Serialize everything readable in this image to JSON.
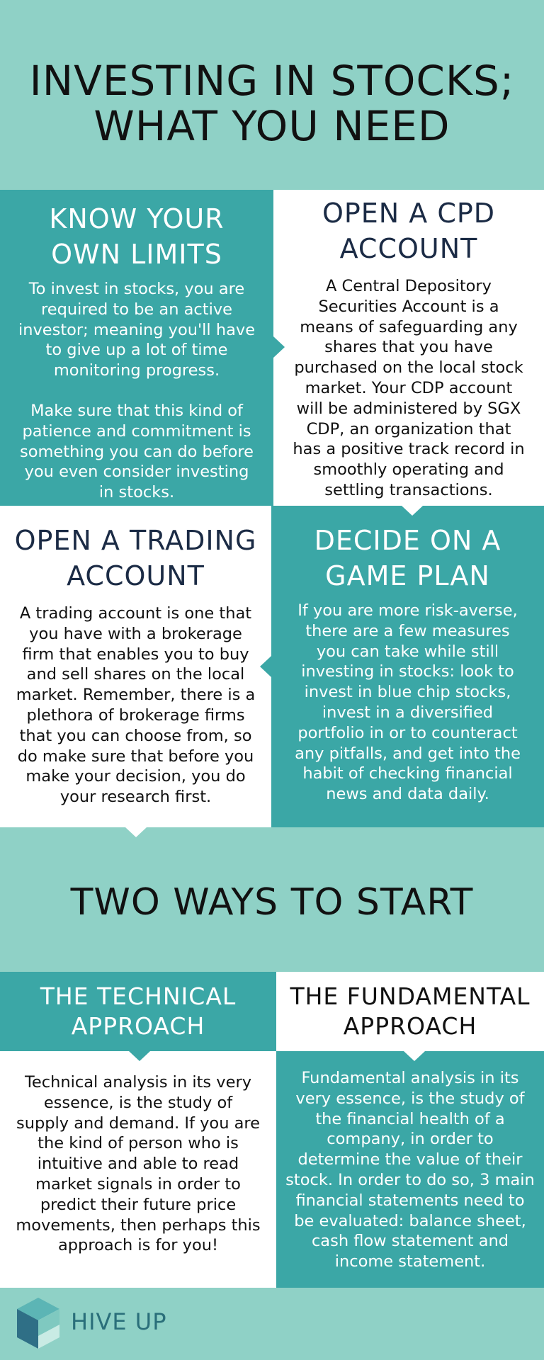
{
  "header": {
    "title": "INVESTING IN STOCKS;\nWHAT YOU NEED"
  },
  "sections": {
    "limits": {
      "heading": "KNOW YOUR\nOWN LIMITS",
      "paragraph1": "To invest in stocks, you are\nrequired to be an active\ninvestor; meaning you'll have\nto give up a lot of time\nmonitoring progress.",
      "paragraph2": "Make sure that this kind of\npatience and commitment is\nsomething you can do before\nyou even consider investing\nin stocks."
    },
    "cpd": {
      "heading": "OPEN A CPD\nACCOUNT",
      "body": "A Central Depository\nSecurities Account is a\nmeans of safeguarding any\nshares that you have\npurchased on the local stock\nmarket. Your CDP account\nwill be administered by SGX\nCDP, an organization that\nhas a positive track record in\nsmoothly operating and\nsettling transactions."
    },
    "trading": {
      "heading": "OPEN A TRADING\nACCOUNT",
      "body": "A trading account is one that\nyou have with a brokerage\nfirm that enables you to buy\nand sell shares on the local\nmarket. Remember, there is a\nplethora of brokerage firms\nthat you can choose from, so\ndo make sure that before you\nmake your decision, you do\nyour research first."
    },
    "gameplan": {
      "heading": "DECIDE ON A\nGAME PLAN",
      "body": "If you are more risk-averse,\nthere are a few measures\nyou can take while still\ninvesting in stocks: look to\ninvest in blue chip stocks,\ninvest in a diversified\nportfolio in or to counteract\nany pitfalls, and get into the\nhabit of checking financial\nnews and data daily."
    }
  },
  "ways": {
    "title": "TWO WAYS TO START",
    "technical": {
      "heading": "THE TECHNICAL\nAPPROACH",
      "body": "Technical analysis in its very\nessence, is the study of\nsupply and demand. If you are\nthe kind of person who is\nintuitive and able to read\nmarket signals in order to\npredict their future price\nmovements, then perhaps this\napproach is for you!"
    },
    "fundamental": {
      "heading": "THE FUNDAMENTAL\nAPPROACH",
      "body": "Fundamental analysis in its\nvery essence, is the study of\nthe financial health of a\ncompany, in order to\ndetermine the value of their\nstock. In order to do so, 3 main\nfinancial statements need to\nbe evaluated: balance sheet,\ncash flow statement and\nincome statement."
    }
  },
  "footer": {
    "brand": "HIVE UP",
    "logo_icon": "hive-up-cube-icon"
  },
  "colors": {
    "mint": "#8fd1c6",
    "teal": "#3ba7a6",
    "white": "#ffffff",
    "navy": "#1b2b45"
  }
}
